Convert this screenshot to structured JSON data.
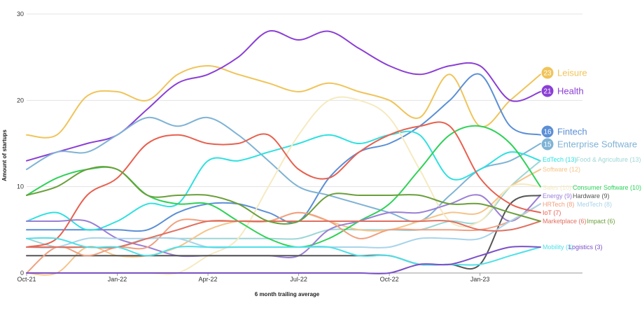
{
  "chart_data": {
    "type": "line",
    "title": "",
    "xlabel": "6 month trailing average",
    "ylabel": "Amount of startups",
    "ylim": [
      0,
      30
    ],
    "yticks": [
      0,
      10,
      20,
      30
    ],
    "x": [
      "2021-10",
      "2021-11",
      "2021-12",
      "2022-01",
      "2022-02",
      "2022-03",
      "2022-04",
      "2022-05",
      "2022-06",
      "2022-07",
      "2022-08",
      "2022-09",
      "2022-10",
      "2022-11",
      "2022-12",
      "2023-01",
      "2023-02",
      "2023-03"
    ],
    "xtick_labels": [
      "Oct-21",
      "Jan-22",
      "Apr-22",
      "Jul-22",
      "Oct-22",
      "Jan-23"
    ],
    "xtick_positions": [
      "2021-10",
      "2022-01",
      "2022-04",
      "2022-07",
      "2022-10",
      "2023-01"
    ],
    "grid": true,
    "legend": "end-of-line labels",
    "series": [
      {
        "name": "Leisure",
        "end_value": 23,
        "color": "#f0c45a",
        "label_size": "large",
        "values": [
          16,
          16,
          20.5,
          21,
          20,
          23,
          24,
          23,
          22,
          21,
          22,
          21,
          20,
          18,
          23,
          17,
          20,
          23
        ]
      },
      {
        "name": "Health",
        "end_value": 21,
        "color": "#8b3fd6",
        "label_size": "large",
        "values": [
          13,
          14,
          15,
          16,
          19,
          22,
          23,
          25,
          28,
          27,
          28,
          26,
          24,
          23,
          24,
          24,
          20,
          21
        ]
      },
      {
        "name": "Fintech",
        "end_value": 16,
        "color": "#5b8fd6",
        "label_size": "large",
        "values": [
          5,
          5,
          5,
          5,
          5,
          7,
          8,
          8,
          7,
          6,
          11,
          14,
          15,
          17,
          20,
          23,
          17,
          16
        ]
      },
      {
        "name": "Enterprise Software",
        "end_value": 15,
        "color": "#7fb3d5",
        "label_size": "large",
        "values": [
          12,
          14,
          14,
          16,
          18,
          17,
          18,
          16,
          13,
          10,
          9,
          8,
          7,
          6,
          9,
          12,
          13,
          15
        ]
      },
      {
        "name": "EdTech",
        "end_value": 13,
        "color": "#2fe0e0",
        "label_size": "small",
        "values": [
          6,
          7,
          5,
          6,
          8,
          8,
          13,
          13,
          14,
          15,
          16,
          15,
          16,
          16,
          11,
          12,
          14,
          13
        ]
      },
      {
        "name": "Food & Agriculture",
        "end_value": 13,
        "color": "#9ed6d6",
        "label_size": "small",
        "values": [
          4,
          3,
          3,
          3,
          4,
          4,
          4,
          4,
          4,
          4,
          5,
          5,
          5,
          5,
          6,
          6,
          10,
          13
        ]
      },
      {
        "name": "Software",
        "end_value": 12,
        "color": "#f5c48a",
        "label_size": "small",
        "values": [
          0,
          0,
          3,
          2,
          2,
          3,
          5,
          6,
          6,
          7,
          6,
          5,
          5,
          6,
          7,
          7,
          10,
          12
        ]
      },
      {
        "name": "Sales",
        "end_value": 10,
        "color": "#f5eac0",
        "label_size": "small",
        "values": [
          0,
          0,
          0,
          0,
          0,
          0,
          2,
          4,
          10,
          16,
          20,
          20,
          18,
          12,
          6,
          6,
          10,
          10
        ]
      },
      {
        "name": "Consumer Software",
        "end_value": 10,
        "color": "#2ed158",
        "label_size": "small",
        "values": [
          9,
          11,
          12,
          12,
          9,
          8,
          8,
          6,
          4,
          3,
          4,
          6,
          8,
          12,
          16,
          17,
          15,
          10
        ]
      },
      {
        "name": "Energy",
        "end_value": 9,
        "color": "#9a7fd6",
        "label_size": "small",
        "values": [
          6,
          6,
          6,
          4,
          3,
          2,
          2,
          2,
          2,
          2,
          5,
          6,
          7,
          7,
          8,
          9,
          6,
          9
        ]
      },
      {
        "name": "Hardware",
        "end_value": 9,
        "color": "#555555",
        "label_size": "small",
        "values": [
          2,
          2,
          2,
          2,
          2,
          2,
          2,
          2,
          2,
          2,
          2,
          2,
          2,
          1,
          1,
          1,
          8,
          9
        ]
      },
      {
        "name": "HRTech",
        "end_value": 8,
        "color": "#f0a080",
        "label_size": "small",
        "values": [
          0,
          3,
          2,
          3,
          3,
          6,
          6,
          6,
          6,
          7,
          6,
          4,
          5,
          5,
          5,
          5,
          6,
          8
        ]
      },
      {
        "name": "MedTech",
        "end_value": 8,
        "color": "#a8d4ea",
        "label_size": "small",
        "values": [
          3,
          3,
          4,
          4,
          4,
          4,
          3,
          3,
          3,
          3,
          3,
          3,
          3,
          4,
          4,
          4,
          6,
          8
        ]
      },
      {
        "name": "IoT",
        "end_value": 7,
        "color": "#e8604f",
        "label_size": "small",
        "values": [
          3,
          4,
          9,
          11,
          15,
          16,
          15,
          15,
          16,
          12,
          11,
          14,
          16,
          17,
          17,
          11,
          8,
          7
        ]
      },
      {
        "name": "Marketplace",
        "end_value": 6,
        "color": "#e07060",
        "label_size": "small",
        "values": [
          3,
          3,
          3,
          3,
          4,
          5,
          6,
          6,
          6,
          6,
          6,
          6,
          6,
          6,
          6,
          5,
          5,
          6
        ]
      },
      {
        "name": "Impact",
        "end_value": 6,
        "color": "#6a9f3a",
        "label_size": "small",
        "values": [
          9,
          10,
          12,
          12,
          9,
          9,
          9,
          8,
          6,
          6,
          9,
          9,
          9,
          9,
          8,
          8,
          7,
          6
        ]
      },
      {
        "name": "Mobility",
        "end_value": 3,
        "color": "#4fe0e8",
        "label_size": "small",
        "values": [
          4,
          4,
          3,
          3,
          2,
          3,
          3,
          3,
          3,
          3,
          3,
          2,
          2,
          1,
          1,
          1,
          2,
          3
        ]
      },
      {
        "name": "Logistics",
        "end_value": 3,
        "color": "#7a50c8",
        "label_size": "small",
        "values": [
          0,
          0,
          0,
          0,
          0,
          0,
          0,
          0,
          0,
          0,
          0,
          0,
          0,
          1,
          1,
          2,
          3,
          3
        ]
      }
    ],
    "end_labels": [
      {
        "series": "Leisure",
        "text": "Leisure",
        "badge": "23"
      },
      {
        "series": "Health",
        "text": "Health",
        "badge": "21"
      },
      {
        "series": "Fintech",
        "text": "Fintech",
        "badge": "16"
      },
      {
        "series": "Enterprise Software",
        "text": "Enterprise Software",
        "badge": "15"
      },
      {
        "series": "EdTech",
        "text": "EdTech (13)"
      },
      {
        "series": "Food & Agriculture",
        "text": "Food & Agriculture (13)"
      },
      {
        "series": "Software",
        "text": "Software (12)"
      },
      {
        "series": "Sales",
        "text": "Sales (10)"
      },
      {
        "series": "Consumer Software",
        "text": "Consumer Software (10)"
      },
      {
        "series": "Energy",
        "text": "Energy (9)"
      },
      {
        "series": "Hardware",
        "text": "Hardware (9)"
      },
      {
        "series": "HRTech",
        "text": "HRTech (8)"
      },
      {
        "series": "MedTech",
        "text": "MedTech (8)"
      },
      {
        "series": "IoT",
        "text": "IoT (7)"
      },
      {
        "series": "Marketplace",
        "text": "Marketplace (6)"
      },
      {
        "series": "Impact",
        "text": "Impact (6)"
      },
      {
        "series": "Mobility",
        "text": "Mobility (3)"
      },
      {
        "series": "Logistics",
        "text": "Logistics (3)"
      }
    ]
  }
}
